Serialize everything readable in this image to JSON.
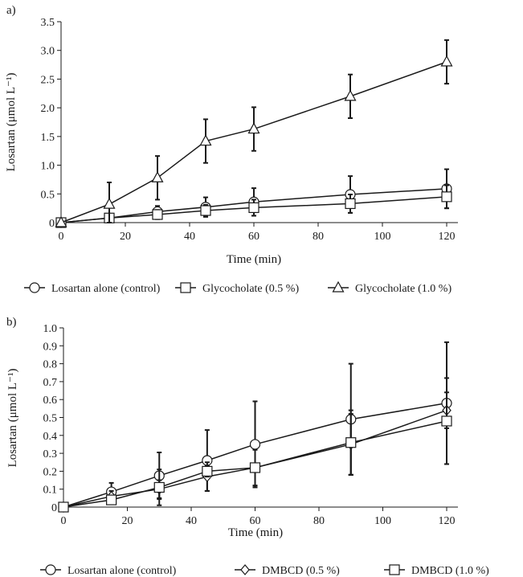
{
  "chart_data": [
    {
      "type": "line",
      "panel_label": "a)",
      "xlabel": "Time (min)",
      "ylabel": "Losartan (μmol L⁻¹)",
      "xlim": [
        0,
        120
      ],
      "ylim": [
        0,
        3.5
      ],
      "x_ticks": [
        "0",
        "20",
        "40",
        "60",
        "80",
        "100",
        "120"
      ],
      "y_ticks": [
        "0",
        "0.5",
        "1.0",
        "1.5",
        "2.0",
        "2.5",
        "3.0",
        "3.5"
      ],
      "grid": false,
      "legend_position": "bottom",
      "x": [
        0,
        15,
        30,
        45,
        60,
        90,
        120
      ],
      "series": [
        {
          "name": "Losartan alone (control)",
          "marker": "circle",
          "values": [
            0,
            0.08,
            0.19,
            0.27,
            0.36,
            0.49,
            0.59
          ],
          "errors": [
            0,
            0.05,
            0.1,
            0.17,
            0.24,
            0.32,
            0.34
          ]
        },
        {
          "name": "Glycocholate (0.5 %)",
          "marker": "square",
          "values": [
            0,
            0.08,
            0.14,
            0.21,
            0.26,
            0.33,
            0.45
          ],
          "errors": [
            0,
            0.04,
            0.08,
            0.1,
            0.14,
            0.16,
            0.2
          ]
        },
        {
          "name": "Glycocholate (1.0 %)",
          "marker": "triangle",
          "values": [
            0,
            0.32,
            0.78,
            1.42,
            1.63,
            2.2,
            2.8
          ],
          "errors": [
            0,
            0.38,
            0.38,
            0.38,
            0.38,
            0.38,
            0.38
          ]
        }
      ]
    },
    {
      "type": "line",
      "panel_label": "b)",
      "xlabel": "Time (min)",
      "ylabel": "Losartan (μmol L⁻¹)",
      "xlim": [
        0,
        120
      ],
      "ylim": [
        0,
        1.0
      ],
      "x_ticks": [
        "0",
        "20",
        "40",
        "60",
        "80",
        "100",
        "120"
      ],
      "y_ticks": [
        "0",
        "0.1",
        "0.2",
        "0.3",
        "0.4",
        "0.5",
        "0.6",
        "0.7",
        "0.8",
        "0.9",
        "1.0"
      ],
      "grid": false,
      "legend_position": "bottom",
      "x": [
        0,
        15,
        30,
        45,
        60,
        90,
        120
      ],
      "series": [
        {
          "name": "Losartan alone (control)",
          "marker": "circle",
          "values": [
            0,
            0.085,
            0.175,
            0.26,
            0.35,
            0.49,
            0.58
          ],
          "errors": [
            0,
            0.05,
            0.13,
            0.17,
            0.24,
            0.31,
            0.34
          ]
        },
        {
          "name": "DMBCD (0.5 %)",
          "marker": "diamond",
          "values": [
            0,
            0.06,
            0.1,
            0.17,
            0.22,
            0.35,
            0.54
          ],
          "errors": [
            0,
            0.03,
            0.05,
            0.08,
            0.1,
            0.17,
            0.1
          ]
        },
        {
          "name": "DMBCD (1.0 %)",
          "marker": "square",
          "values": [
            0,
            0.04,
            0.11,
            0.2,
            0.22,
            0.36,
            0.48
          ],
          "errors": [
            0,
            0.02,
            0.1,
            0.03,
            0.1,
            0.18,
            0.24
          ]
        }
      ]
    }
  ]
}
